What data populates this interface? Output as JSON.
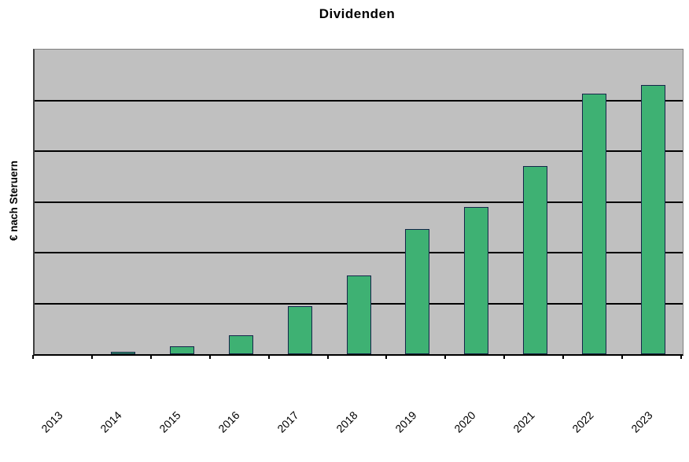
{
  "chart_data": {
    "type": "bar",
    "title": "Dividenden",
    "xlabel": "",
    "ylabel": "€ nach Steruern",
    "categories": [
      "2013",
      "2014",
      "2015",
      "2016",
      "2017",
      "2018",
      "2019",
      "2020",
      "2021",
      "2022",
      "2023"
    ],
    "values": [
      0,
      0.05,
      0.16,
      0.37,
      0.95,
      1.55,
      2.47,
      2.9,
      3.71,
      5.13,
      5.3
    ],
    "value_note": "y-axis shows no numeric tick labels; values estimated in gridline units where 1.0 = one gridline interval",
    "ylim": [
      0,
      6
    ],
    "gridline_step": 1,
    "grid": "horizontal",
    "legend_position": "none",
    "x_tick_rotation": -45,
    "colors": {
      "bar_fill": "#3eb173",
      "bar_border": "#16254a",
      "plot_background": "#c0c0c0",
      "gridline": "#000000",
      "axis": "#000000",
      "text": "#000000",
      "page_background": "#ffffff"
    }
  }
}
